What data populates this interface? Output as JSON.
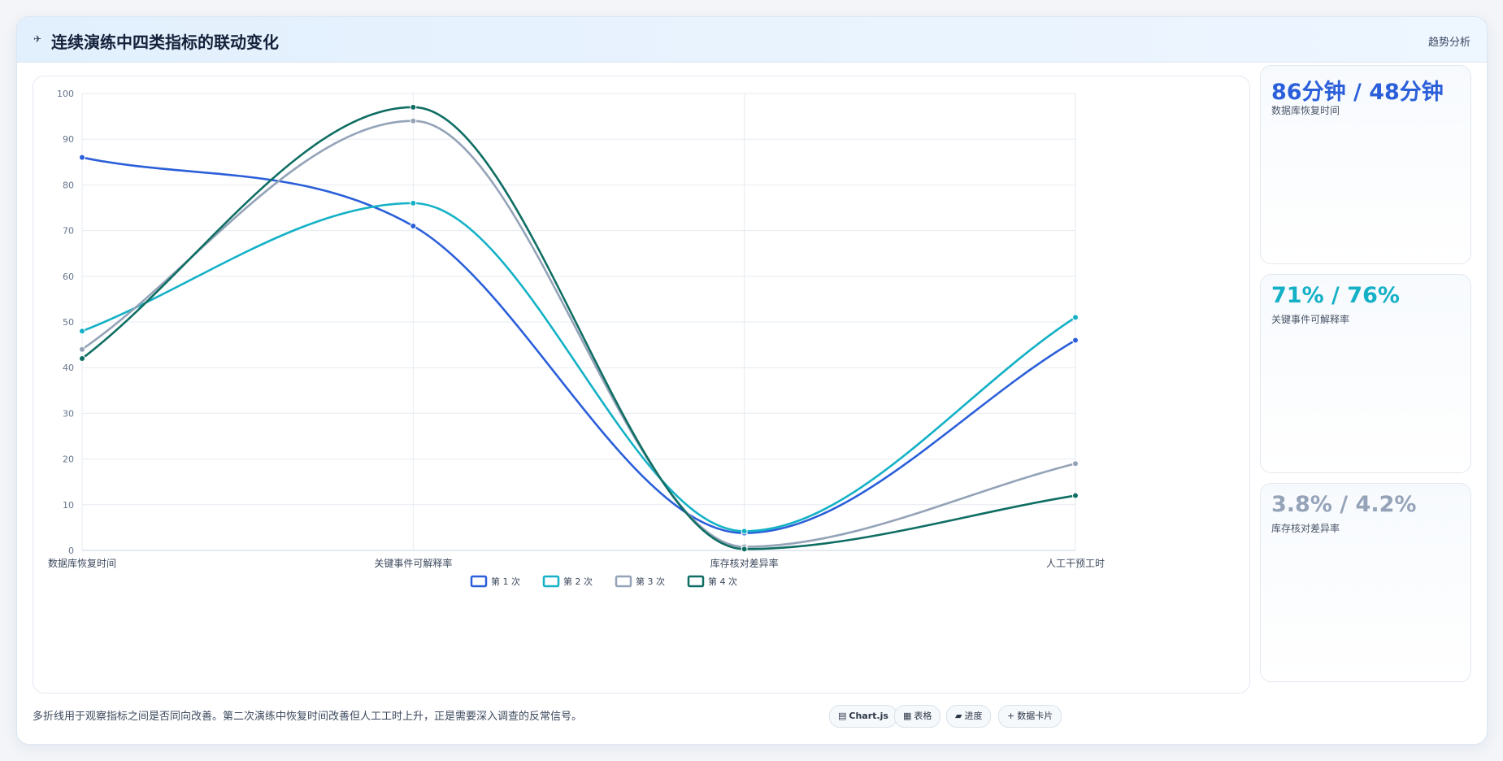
{
  "header": {
    "title_icon": "✈",
    "title": "连续演练中四类指标的联动变化",
    "right_label": "趋势分析"
  },
  "stats": [
    {
      "value": "86分钟 / 48分钟",
      "label": "数据库恢复时间",
      "color": "#2b5fd9"
    },
    {
      "value": "71% / 76%",
      "label": "关键事件可解释率",
      "color": "#14b1c6"
    },
    {
      "value": "3.8% / 4.2%",
      "label": "库存核对差异率",
      "color": "#94a3b8"
    }
  ],
  "footer": {
    "note": "多折线用于观察指标之间是否同向改善。第二次演练中恢复时间改善但人工工时上升，正是需要深入调查的反常信号。",
    "tags": [
      {
        "icon": "▤",
        "label": "Chart.js"
      },
      {
        "icon": "▦",
        "label": "表格"
      },
      {
        "icon": "▰",
        "label": "进度"
      },
      {
        "icon": "+",
        "label": "数据卡片"
      }
    ]
  },
  "chart_data": {
    "type": "line",
    "categories": [
      "数据库恢复时间",
      "关键事件可解释率",
      "库存核对差异率",
      "人工干预工时"
    ],
    "ylim": [
      0,
      100
    ],
    "yticks": [
      0,
      10,
      20,
      30,
      40,
      50,
      60,
      70,
      80,
      90,
      100
    ],
    "grid": true,
    "legend_position": "bottom",
    "series": [
      {
        "name": "第 1 次",
        "color": "#2b5fd9",
        "values": [
          86,
          71,
          3.8,
          46
        ]
      },
      {
        "name": "第 2 次",
        "color": "#14b1c6",
        "values": [
          48,
          76,
          4.2,
          51
        ]
      },
      {
        "name": "第 3 次",
        "color": "#94a3b8",
        "values": [
          44,
          94,
          0.8,
          19
        ]
      },
      {
        "name": "第 4 次",
        "color": "#0f6e63",
        "values": [
          42,
          97,
          0.3,
          12
        ]
      }
    ]
  }
}
